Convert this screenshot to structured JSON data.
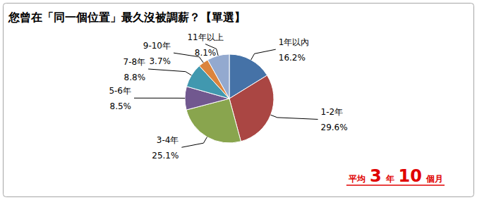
{
  "chart_data": {
    "type": "pie",
    "title": "您曾在「同一個位置」最久沒被調薪？【單選】",
    "categories": [
      "1年以內",
      "1-2年",
      "3-4年",
      "5-6年",
      "7-8年",
      "9-10年",
      "11年以上"
    ],
    "values": [
      16.2,
      29.6,
      25.1,
      8.5,
      8.8,
      3.7,
      8.1
    ],
    "value_labels": [
      "16.2%",
      "29.6%",
      "25.1%",
      "8.5%",
      "8.8%",
      "3.7%",
      "8.1%"
    ],
    "colors": [
      "#4572A7",
      "#AA4643",
      "#89A54E",
      "#71588F",
      "#4198AF",
      "#DB843D",
      "#93A9CF"
    ],
    "data_labels": true,
    "annotations": [
      "平均 3 年 10 個月"
    ]
  }
}
